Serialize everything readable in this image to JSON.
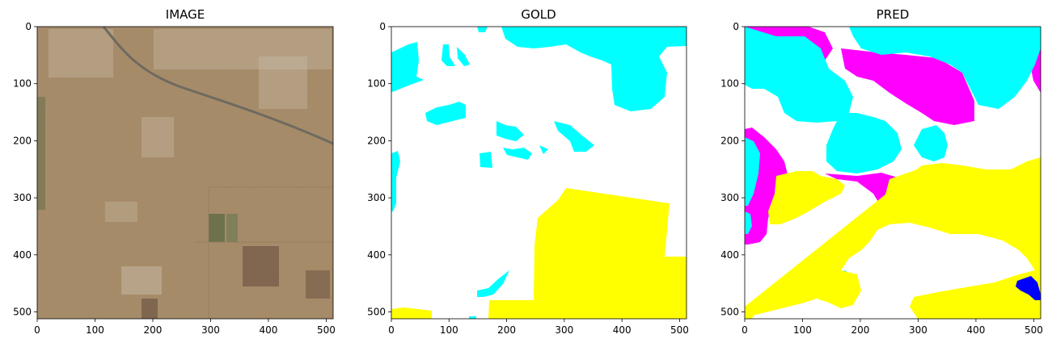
{
  "chart_data": [
    {
      "type": "image",
      "title": "IMAGE",
      "xlim": [
        0,
        512
      ],
      "ylim": [
        512,
        0
      ],
      "xticks": [
        0,
        100,
        200,
        300,
        400,
        500
      ],
      "yticks": [
        0,
        100,
        200,
        300,
        400,
        500
      ],
      "colors": {
        "ground": "#a78a65",
        "buildings": "#d9d3c8",
        "vegetation": "#5f6b45",
        "road": "#6e6a60"
      }
    },
    {
      "type": "segmentation_mask",
      "title": "GOLD",
      "xlim": [
        0,
        512
      ],
      "ylim": [
        512,
        0
      ],
      "xticks": [
        0,
        100,
        200,
        300,
        400,
        500
      ],
      "yticks": [
        0,
        100,
        200,
        300,
        400,
        500
      ],
      "colors": {
        "background": "#ffffff",
        "cyan": "#00ffff",
        "yellow": "#ffff00"
      }
    },
    {
      "type": "segmentation_mask",
      "title": "PRED",
      "xlim": [
        0,
        512
      ],
      "ylim": [
        512,
        0
      ],
      "xticks": [
        0,
        100,
        200,
        300,
        400,
        500
      ],
      "yticks": [
        0,
        100,
        200,
        300,
        400,
        500
      ],
      "colors": {
        "background": "#ffffff",
        "cyan": "#00ffff",
        "yellow": "#ffff00",
        "magenta": "#ff00ff",
        "blue": "#0000ff"
      }
    }
  ]
}
